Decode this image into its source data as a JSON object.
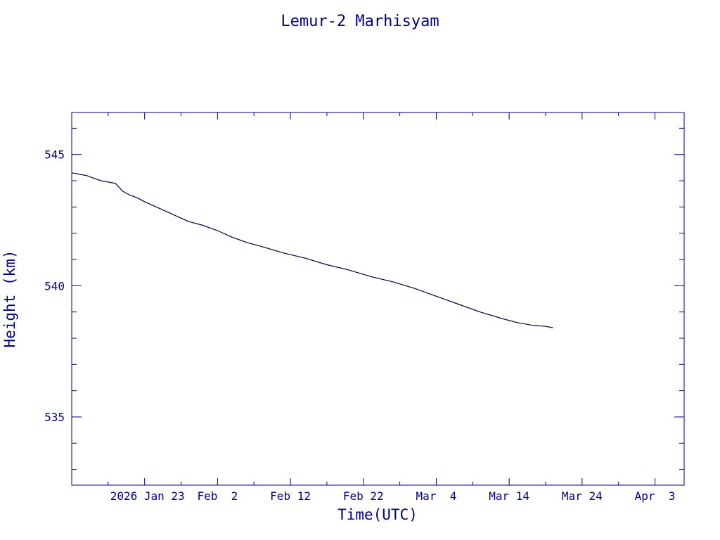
{
  "chart_data": {
    "type": "line",
    "title": "Lemur-2 Marhisyam",
    "xlabel": "Time(UTC)",
    "ylabel": "Height (km)",
    "x_axis": {
      "min": "2026-01-13",
      "max": "2026-04-07",
      "ticks": [
        {
          "date": "2026-01-23",
          "label": "2026 Jan 23"
        },
        {
          "date": "2026-02-02",
          "label": "Feb  2"
        },
        {
          "date": "2026-02-12",
          "label": "Feb 12"
        },
        {
          "date": "2026-02-22",
          "label": "Feb 22"
        },
        {
          "date": "2026-03-04",
          "label": "Mar  4"
        },
        {
          "date": "2026-03-14",
          "label": "Mar 14"
        },
        {
          "date": "2026-03-24",
          "label": "Mar 24"
        },
        {
          "date": "2026-04-03",
          "label": "Apr  3"
        }
      ]
    },
    "y_axis": {
      "min": 532.4,
      "max": 546.6,
      "ticks": [
        535,
        540,
        545
      ]
    },
    "grid": false,
    "colors": {
      "axis": "#000080",
      "line": "#000040"
    },
    "series": [
      {
        "x": [
          "2026-01-13",
          "2026-01-15",
          "2026-01-17",
          "2026-01-19",
          "2026-01-20",
          "2026-01-21",
          "2026-01-22",
          "2026-01-23",
          "2026-01-25",
          "2026-01-27",
          "2026-01-29",
          "2026-01-31",
          "2026-02-02",
          "2026-02-04",
          "2026-02-06",
          "2026-02-08",
          "2026-02-11",
          "2026-02-14",
          "2026-02-17",
          "2026-02-20",
          "2026-02-23",
          "2026-02-26",
          "2026-03-01",
          "2026-03-04",
          "2026-03-07",
          "2026-03-10",
          "2026-03-13",
          "2026-03-15",
          "2026-03-17",
          "2026-03-19",
          "2026-03-20"
        ],
        "y": [
          544.3,
          544.2,
          544.0,
          543.9,
          543.6,
          543.45,
          543.35,
          543.2,
          542.95,
          542.7,
          542.45,
          542.3,
          542.1,
          541.85,
          541.65,
          541.5,
          541.25,
          541.05,
          540.8,
          540.6,
          540.35,
          540.15,
          539.9,
          539.6,
          539.3,
          539.0,
          538.75,
          538.6,
          538.5,
          538.45,
          538.4
        ]
      }
    ]
  }
}
